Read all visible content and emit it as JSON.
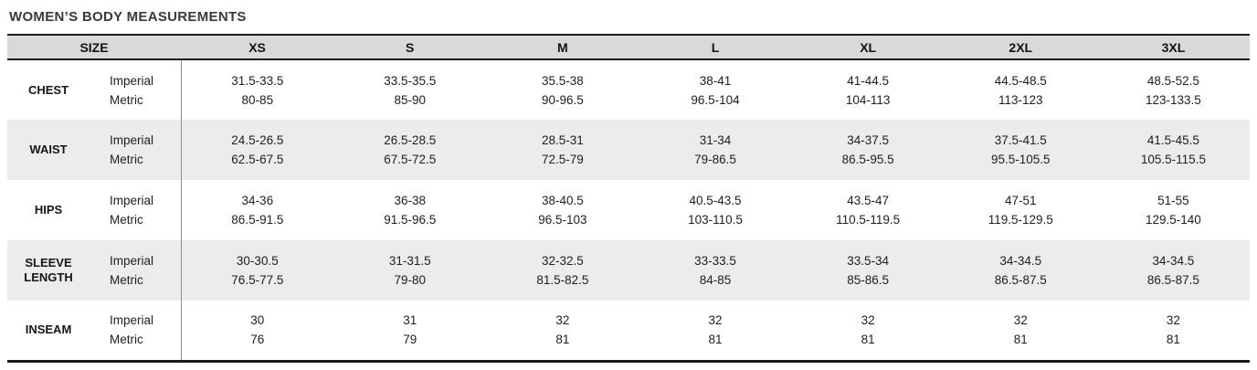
{
  "title": "WOMEN’S BODY MEASUREMENTS",
  "colors": {
    "header_background": "#d9d9d9",
    "alternate_row_background": "#ececec",
    "table_border": "#1c1c1c",
    "column_divider": "#8f8f8f",
    "title_text": "#3a3a3a",
    "body_text": "#202020"
  },
  "units": {
    "imperial": "Imperial",
    "metric": "Metric"
  },
  "table": {
    "header": {
      "size_label": "SIZE",
      "sizes": [
        "XS",
        "S",
        "M",
        "L",
        "XL",
        "2XL",
        "3XL"
      ]
    },
    "rows": [
      {
        "name": "CHEST",
        "imperial": [
          "31.5-33.5",
          "33.5-35.5",
          "35.5-38",
          "38-41",
          "41-44.5",
          "44.5-48.5",
          "48.5-52.5"
        ],
        "metric": [
          "80-85",
          "85-90",
          "90-96.5",
          "96.5-104",
          "104-113",
          "113-123",
          "123-133.5"
        ]
      },
      {
        "name": "WAIST",
        "imperial": [
          "24.5-26.5",
          "26.5-28.5",
          "28.5-31",
          "31-34",
          "34-37.5",
          "37.5-41.5",
          "41.5-45.5"
        ],
        "metric": [
          "62.5-67.5",
          "67.5-72.5",
          "72.5-79",
          "79-86.5",
          "86.5-95.5",
          "95.5-105.5",
          "105.5-115.5"
        ]
      },
      {
        "name": "HIPS",
        "imperial": [
          "34-36",
          "36-38",
          "38-40.5",
          "40.5-43.5",
          "43.5-47",
          "47-51",
          "51-55"
        ],
        "metric": [
          "86.5-91.5",
          "91.5-96.5",
          "96.5-103",
          "103-110.5",
          "110.5-119.5",
          "119.5-129.5",
          "129.5-140"
        ]
      },
      {
        "name": "SLEEVE LENGTH",
        "imperial": [
          "30-30.5",
          "31-31.5",
          "32-32.5",
          "33-33.5",
          "33.5-34",
          "34-34.5",
          "34-34.5"
        ],
        "metric": [
          "76.5-77.5",
          "79-80",
          "81.5-82.5",
          "84-85",
          "85-86.5",
          "86.5-87.5",
          "86.5-87.5"
        ]
      },
      {
        "name": "INSEAM",
        "imperial": [
          "30",
          "31",
          "32",
          "32",
          "32",
          "32",
          "32"
        ],
        "metric": [
          "76",
          "79",
          "81",
          "81",
          "81",
          "81",
          "81"
        ]
      }
    ]
  }
}
